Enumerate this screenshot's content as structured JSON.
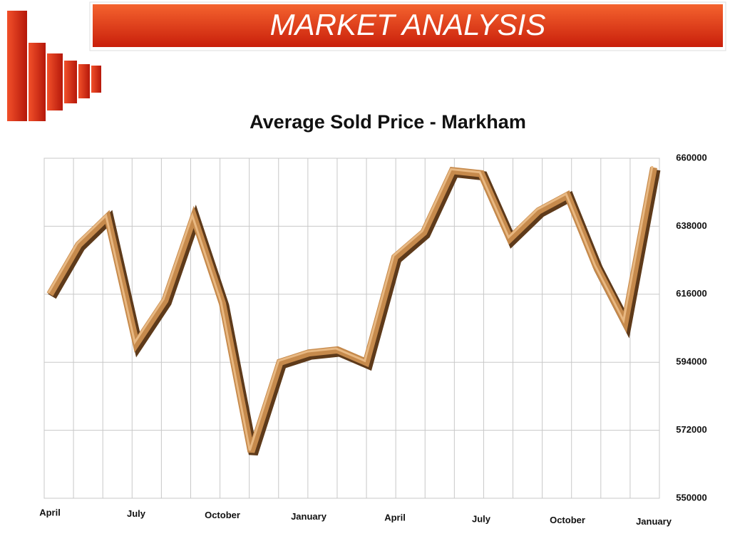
{
  "slide_title": "MARKET ANALYSIS",
  "chart_data": {
    "type": "line",
    "title": "Average Sold Price - Markham",
    "categories": [
      "April",
      null,
      null,
      "July",
      null,
      null,
      "October",
      null,
      null,
      "January",
      null,
      null,
      "April",
      null,
      null,
      "July",
      null,
      null,
      "October",
      null,
      null,
      "January"
    ],
    "values": [
      616000,
      632000,
      641000,
      600000,
      614000,
      641000,
      613000,
      565000,
      594000,
      597000,
      598000,
      594000,
      628000,
      636000,
      656000,
      655000,
      634000,
      643000,
      648000,
      625000,
      607000,
      657000
    ],
    "color": "#c68a4c",
    "ylim": [
      550000,
      660000
    ],
    "yticks": [
      550000,
      572000,
      594000,
      616000,
      638000,
      660000
    ],
    "grid": true
  }
}
